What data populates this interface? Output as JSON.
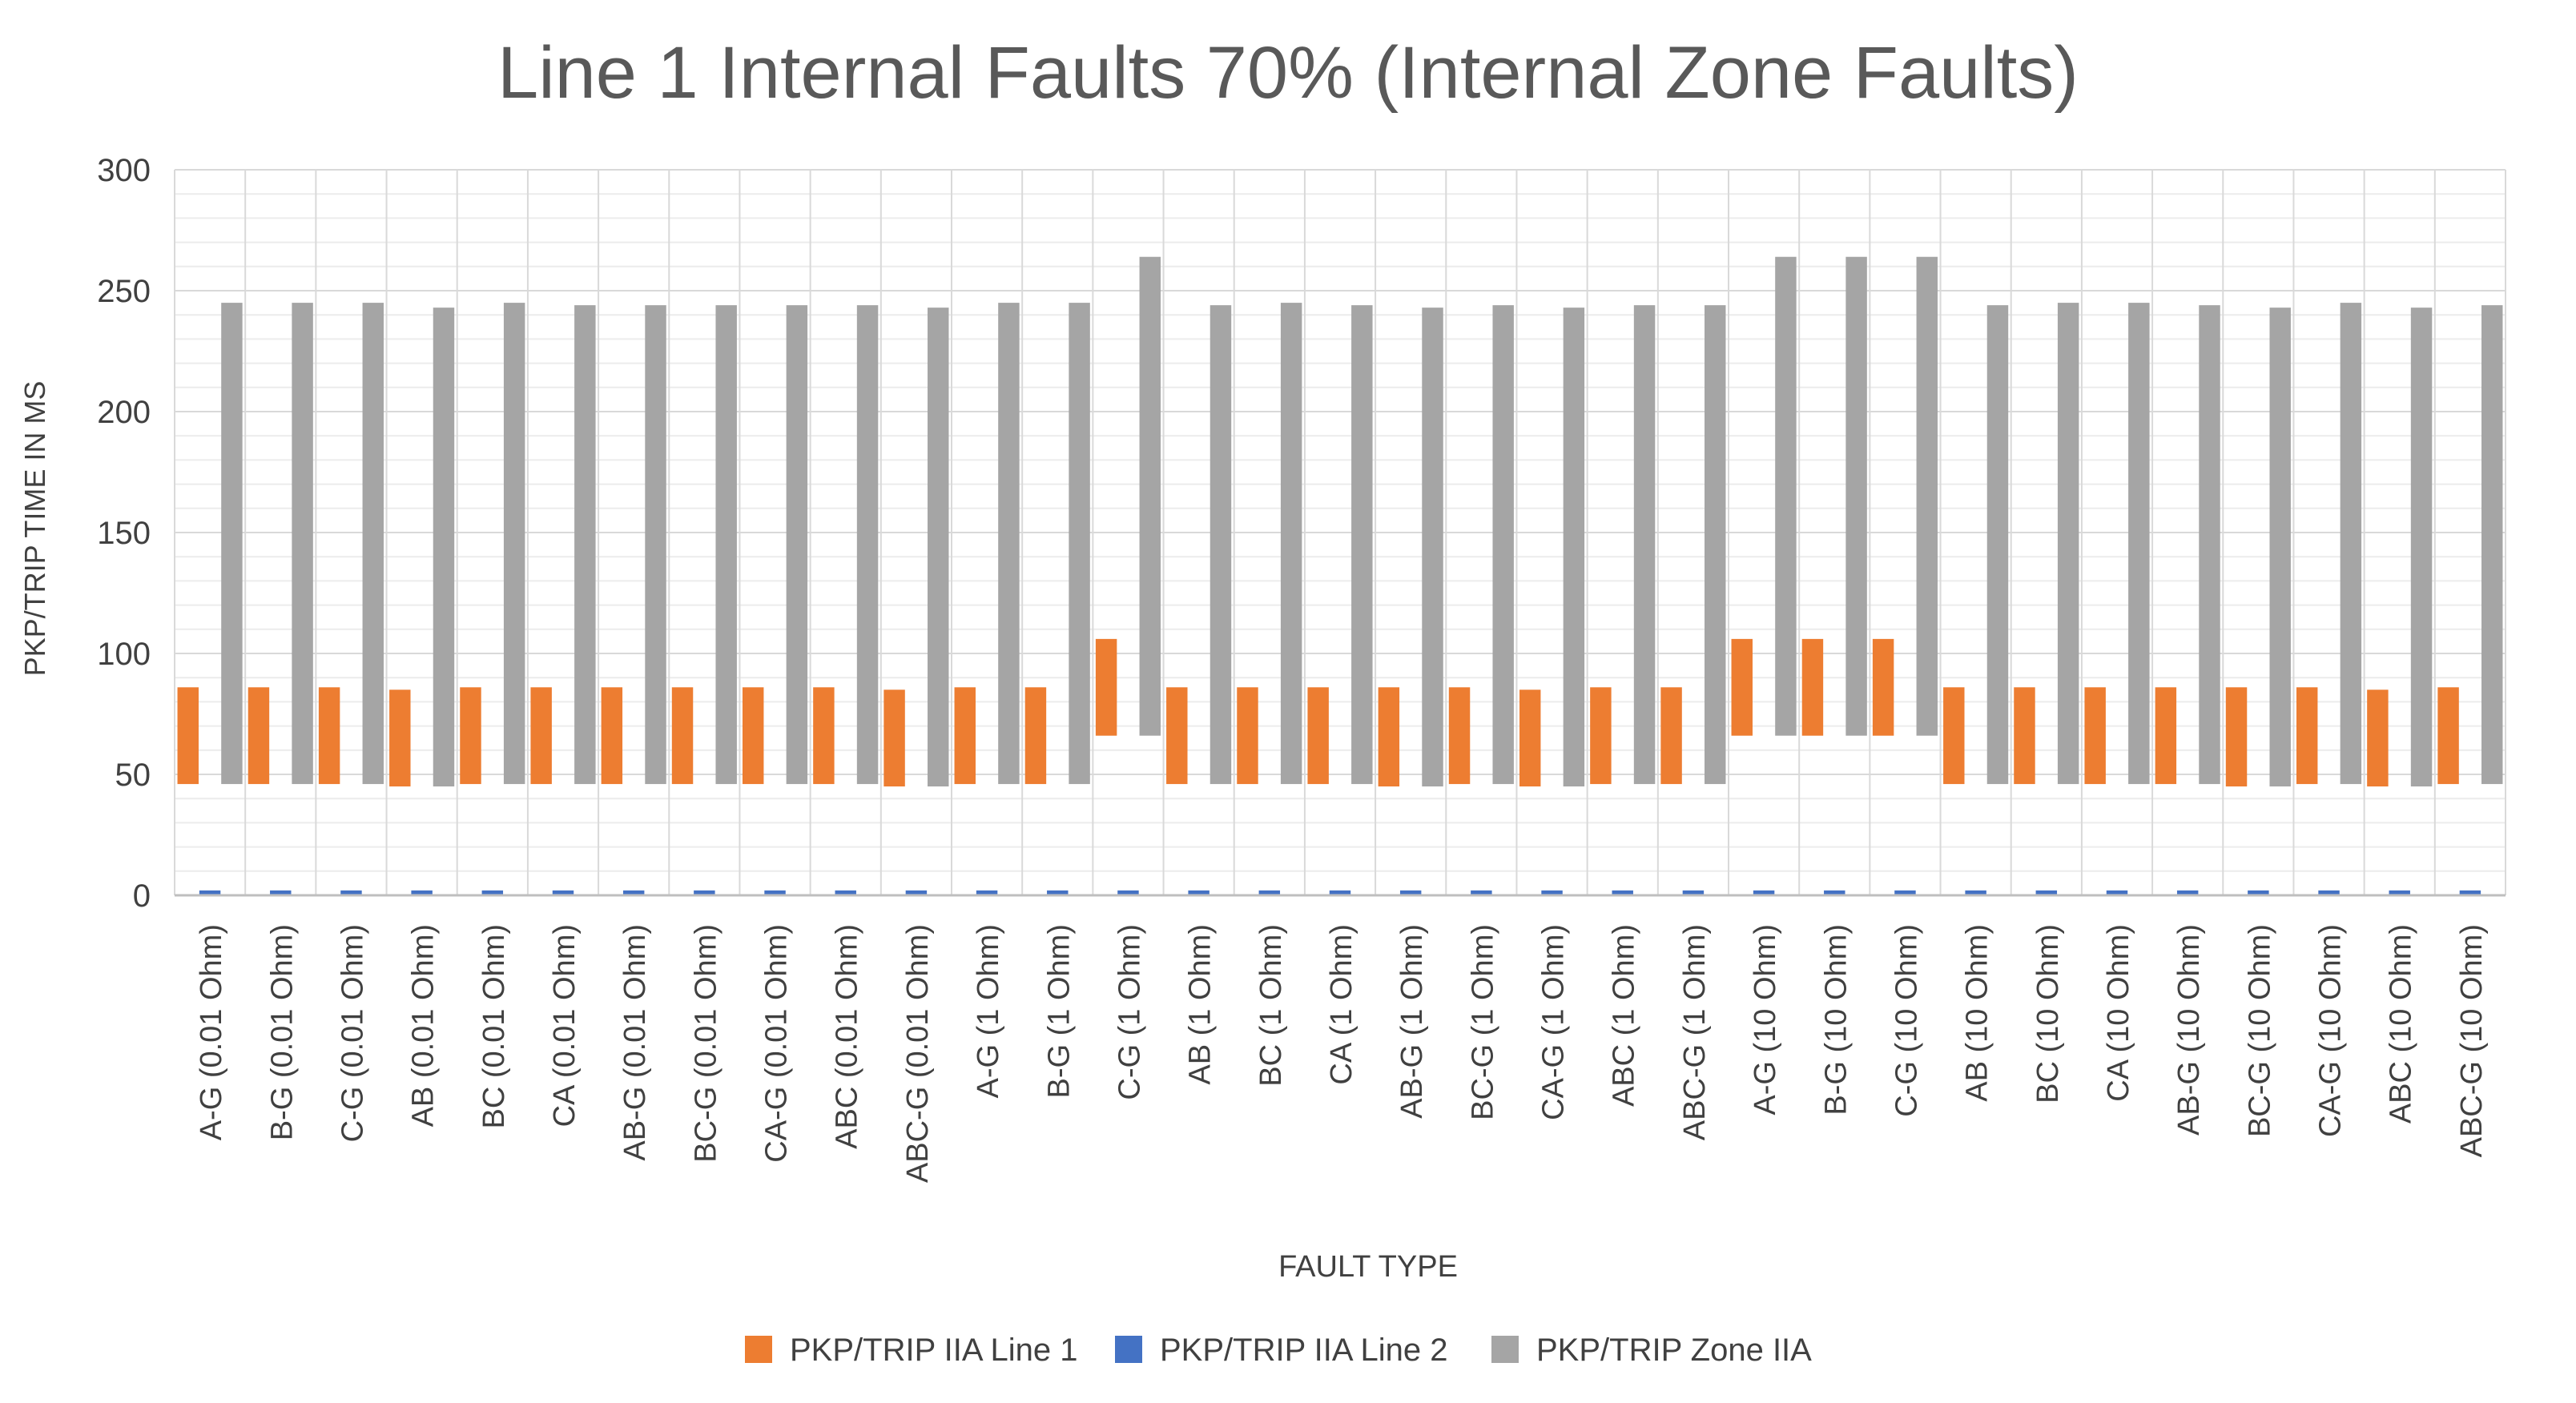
{
  "chart_data": {
    "type": "bar",
    "title": "Line 1 Internal Faults 70% (Internal Zone Faults)",
    "xlabel": "FAULT TYPE",
    "ylabel": "PKP/TRIP TIME IN MS",
    "ylim": [
      0,
      300
    ],
    "yticks": [
      0,
      50,
      100,
      150,
      200,
      250,
      300
    ],
    "grid": true,
    "legend_position": "bottom",
    "categories": [
      "A-G (0.01 Ohm)",
      "B-G (0.01 Ohm)",
      "C-G (0.01 Ohm)",
      "AB (0.01 Ohm)",
      "BC (0.01 Ohm)",
      "CA (0.01 Ohm)",
      "AB-G (0.01 Ohm)",
      "BC-G (0.01 Ohm)",
      "CA-G (0.01 Ohm)",
      "ABC (0.01 Ohm)",
      "ABC-G (0.01 Ohm)",
      "A-G (1 Ohm)",
      "B-G (1 Ohm)",
      "C-G (1 Ohm)",
      "AB (1 Ohm)",
      "BC (1 Ohm)",
      "CA (1 Ohm)",
      "AB-G (1 Ohm)",
      "BC-G (1 Ohm)",
      "CA-G (1 Ohm)",
      "ABC (1 Ohm)",
      "ABC-G (1 Ohm)",
      "A-G (10 Ohm)",
      "B-G (10 Ohm)",
      "C-G (10 Ohm)",
      "AB (10 Ohm)",
      "BC (10 Ohm)",
      "CA (10 Ohm)",
      "AB-G (10 Ohm)",
      "BC-G (10 Ohm)",
      "CA-G (10 Ohm)",
      "ABC (10 Ohm)",
      "ABC-G (10 Ohm)"
    ],
    "series": [
      {
        "name": "PKP/TRIP IIA Line 1",
        "color": "#ED7D31",
        "floating": true,
        "bottoms": [
          46,
          46,
          46,
          45,
          46,
          46,
          46,
          46,
          46,
          46,
          45,
          46,
          46,
          66,
          46,
          46,
          46,
          45,
          46,
          45,
          46,
          46,
          66,
          66,
          66,
          46,
          46,
          46,
          46,
          45,
          46,
          45,
          46
        ],
        "values": [
          86,
          86,
          86,
          85,
          86,
          86,
          86,
          86,
          86,
          86,
          85,
          86,
          86,
          106,
          86,
          86,
          86,
          86,
          86,
          85,
          86,
          86,
          106,
          106,
          106,
          86,
          86,
          86,
          86,
          86,
          86,
          85,
          86
        ]
      },
      {
        "name": "PKP/TRIP IIA Line 2",
        "color": "#4472C4",
        "floating": false,
        "values": [
          2,
          2,
          2,
          2,
          2,
          2,
          2,
          2,
          2,
          2,
          2,
          2,
          2,
          2,
          2,
          2,
          2,
          2,
          2,
          2,
          2,
          2,
          2,
          2,
          2,
          2,
          2,
          2,
          2,
          2,
          2,
          2,
          2
        ]
      },
      {
        "name": "PKP/TRIP Zone IIA",
        "color": "#A5A5A5",
        "floating": true,
        "bottoms": [
          46,
          46,
          46,
          45,
          46,
          46,
          46,
          46,
          46,
          46,
          45,
          46,
          46,
          66,
          46,
          46,
          46,
          45,
          46,
          45,
          46,
          46,
          66,
          66,
          66,
          46,
          46,
          46,
          46,
          45,
          46,
          45,
          46
        ],
        "values": [
          245,
          245,
          245,
          243,
          245,
          244,
          244,
          244,
          244,
          244,
          243,
          245,
          245,
          264,
          244,
          245,
          244,
          243,
          244,
          243,
          244,
          244,
          264,
          264,
          264,
          244,
          245,
          245,
          244,
          243,
          245,
          243,
          244
        ]
      }
    ]
  }
}
